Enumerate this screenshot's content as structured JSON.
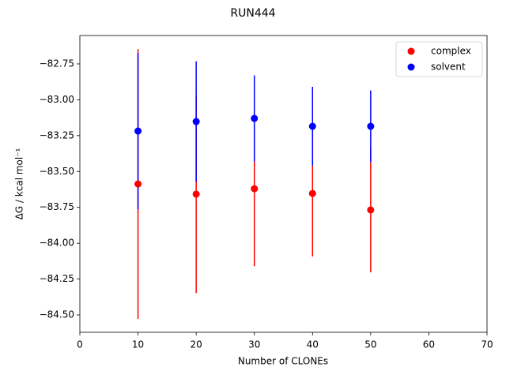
{
  "chart_data": {
    "type": "scatter",
    "title": "RUN444",
    "x_label": "Number of CLONEs",
    "y_label": "ΔG / kcal mol⁻¹",
    "x": [
      10,
      20,
      30,
      40,
      50
    ],
    "series": [
      {
        "name": "complex",
        "color": "#ff0000",
        "values": [
          -83.587,
          -83.658,
          -83.62,
          -83.653,
          -83.768
        ],
        "errors": [
          0.94,
          0.69,
          0.54,
          0.44,
          0.435
        ]
      },
      {
        "name": "solvent",
        "color": "#0000ff",
        "values": [
          -83.218,
          -83.152,
          -83.13,
          -83.185,
          -83.185
        ],
        "errors": [
          0.545,
          0.42,
          0.3,
          0.275,
          0.25
        ]
      }
    ],
    "xlim": [
      0,
      70
    ],
    "xticks": [
      0,
      10,
      20,
      30,
      40,
      50,
      60,
      70
    ],
    "ylim": [
      -84.621,
      -82.552
    ],
    "yticks": [
      {
        "value": -82.75,
        "label": "−82.75"
      },
      {
        "value": -83.0,
        "label": "−83.00"
      },
      {
        "value": -83.25,
        "label": "−83.25"
      },
      {
        "value": -83.5,
        "label": "−83.50"
      },
      {
        "value": -83.75,
        "label": "−83.75"
      },
      {
        "value": -84.0,
        "label": "−84.00"
      },
      {
        "value": -84.25,
        "label": "−84.25"
      },
      {
        "value": -84.5,
        "label": "−84.50"
      }
    ],
    "legend": "upper right"
  }
}
